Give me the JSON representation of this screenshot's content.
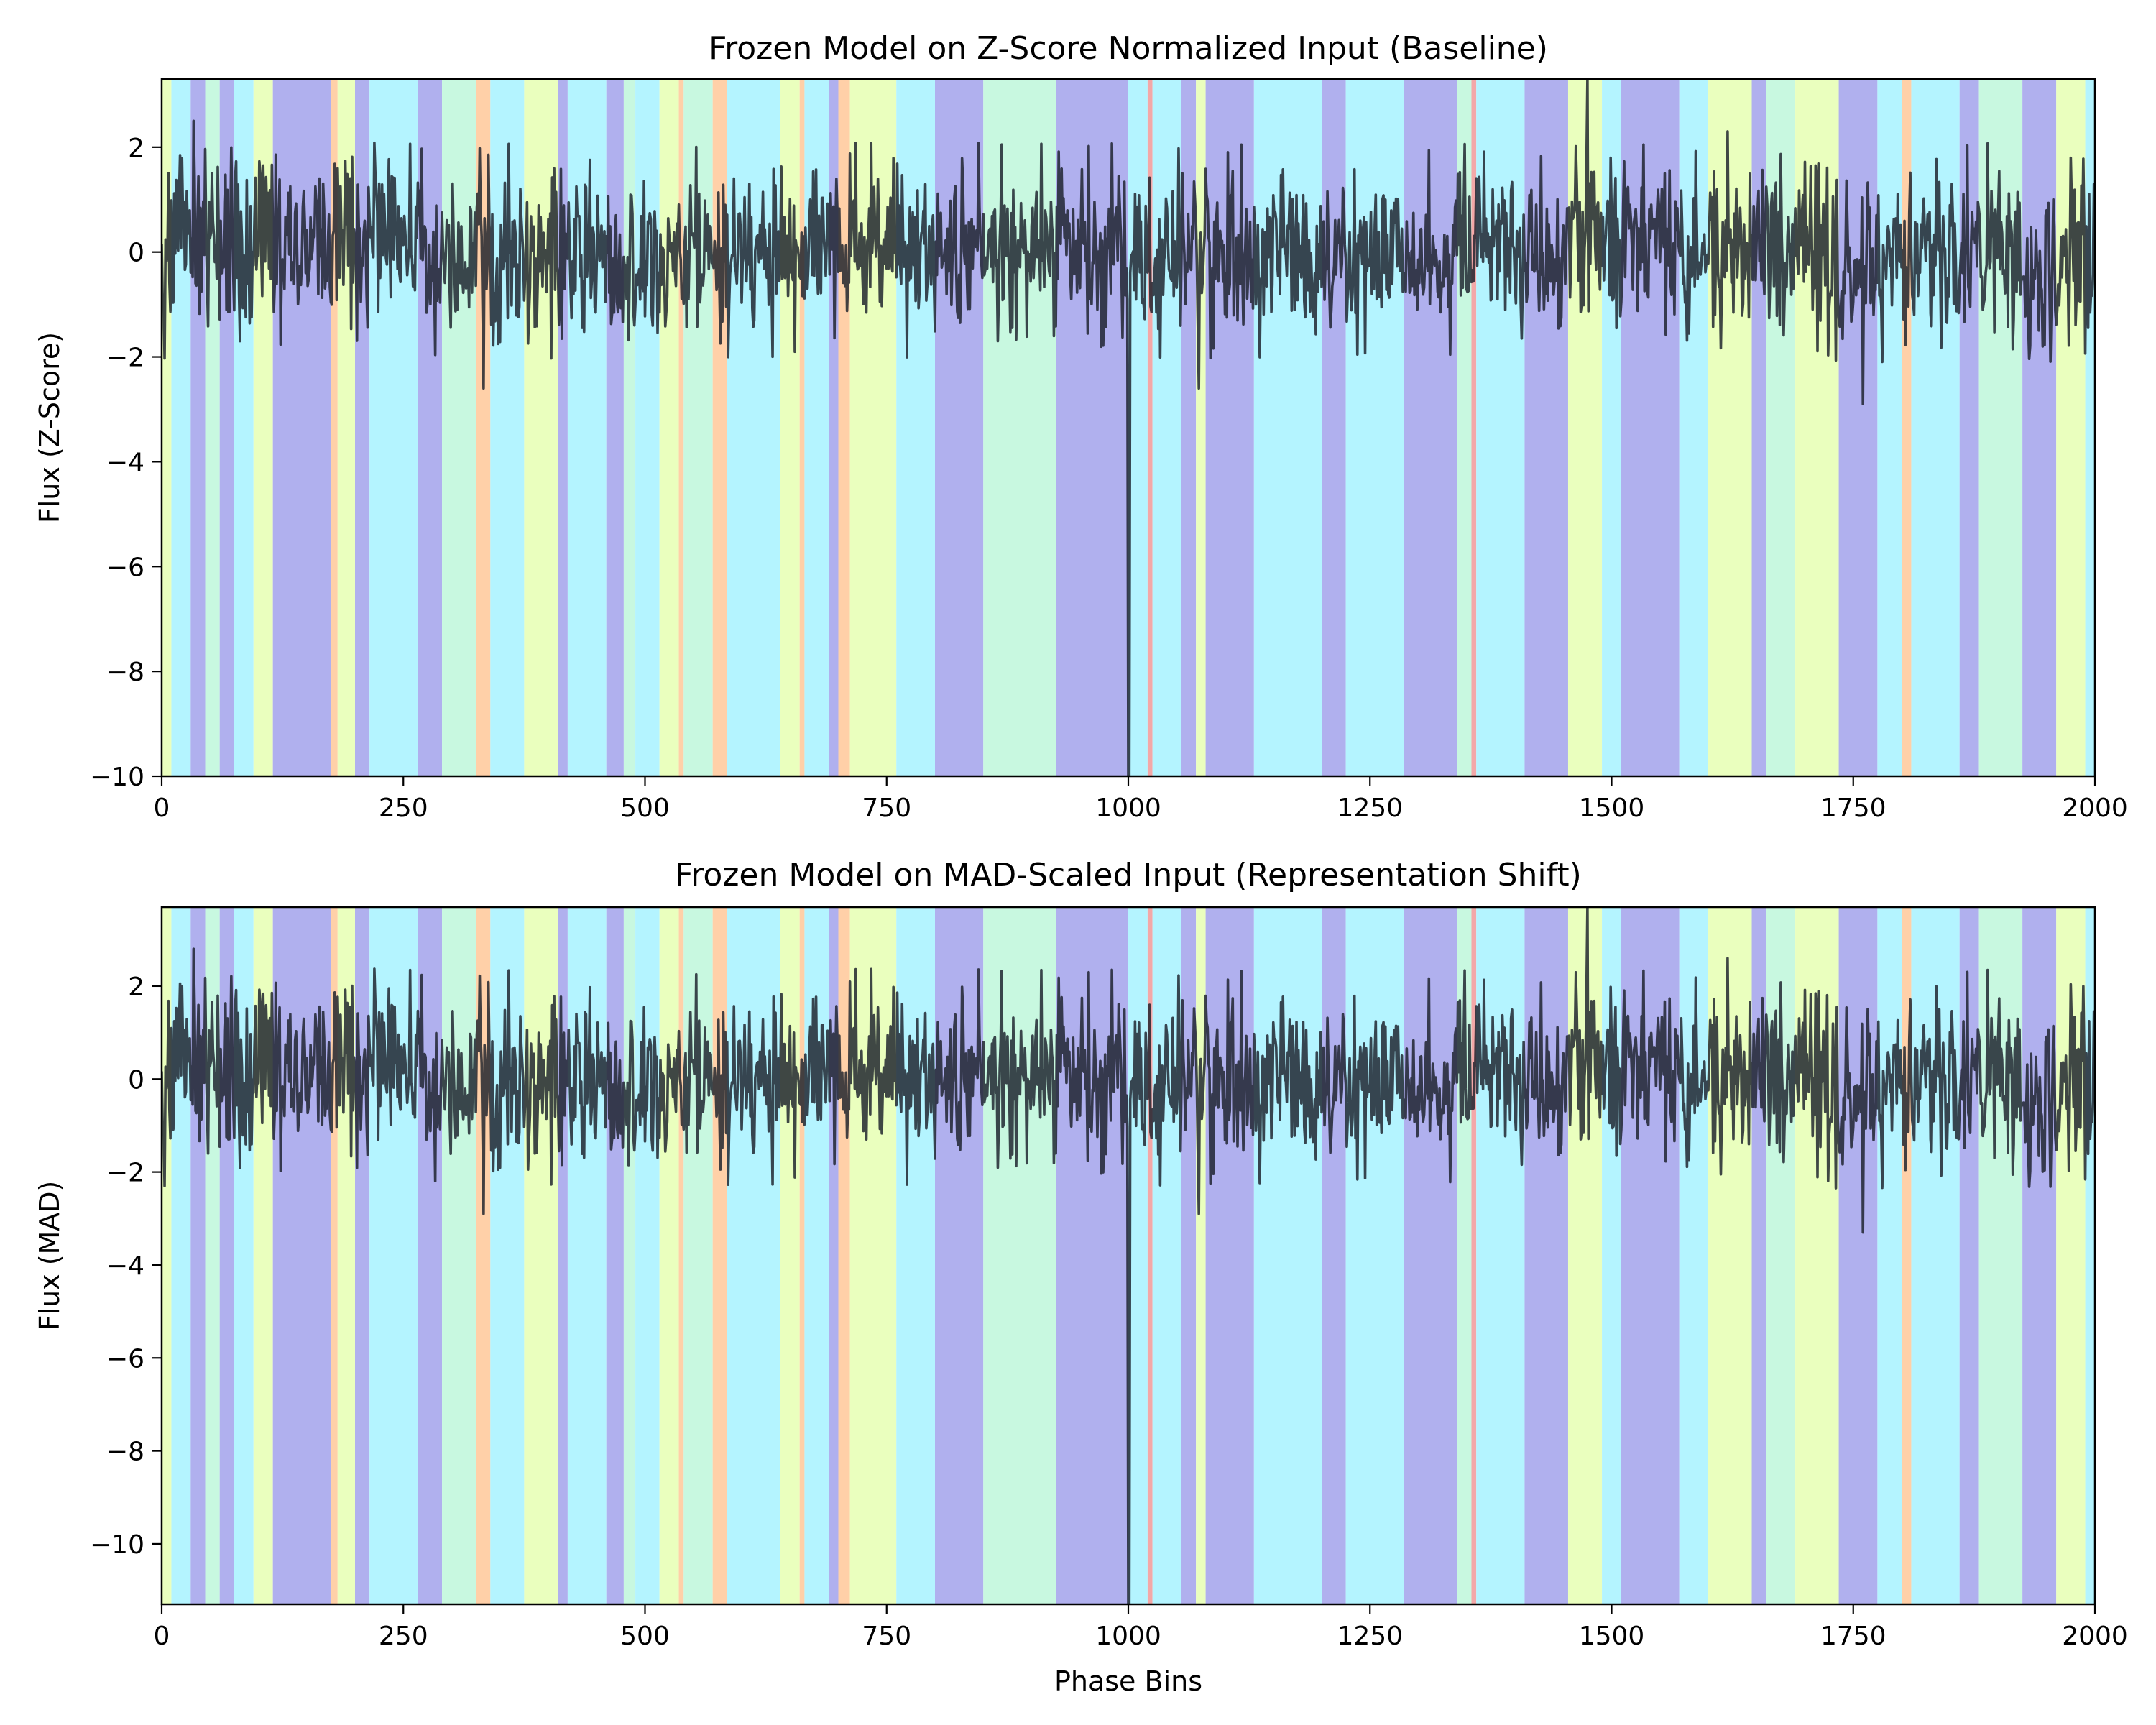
{
  "chart_data": [
    {
      "type": "line",
      "title": "Frozen Model on Z-Score Normalized Input (Baseline)",
      "xlabel": "",
      "ylabel": "Flux (Z-Score)",
      "xlim": [
        0,
        2000
      ],
      "ylim": [
        -10,
        3.3
      ],
      "xticks": [
        0,
        250,
        500,
        750,
        1000,
        1250,
        1500,
        1750,
        2000
      ],
      "xtick_labels": [
        "0",
        "250",
        "500",
        "750",
        "1000",
        "1250",
        "1500",
        "1750",
        "2000"
      ],
      "yticks": [
        2,
        0,
        -2,
        -4,
        -6,
        -8,
        -10
      ],
      "ytick_labels": [
        "2",
        "0",
        "−2",
        "−4",
        "−6",
        "−8",
        "−10"
      ],
      "grid": false,
      "line_color": "#1a1f2a",
      "noise_std": 0.85,
      "spike_scale": 1.0,
      "events": [
        {
          "x": 1000,
          "y": -10.0
        },
        {
          "x": 1001,
          "y": -10.0
        },
        {
          "x": 1475,
          "y": 3.3
        },
        {
          "x": 33,
          "y": 2.5
        },
        {
          "x": 333,
          "y": -2.6
        },
        {
          "x": 1073,
          "y": -2.6
        },
        {
          "x": 1760,
          "y": -2.9
        },
        {
          "x": 1620,
          "y": 2.3
        }
      ]
    },
    {
      "type": "line",
      "title": "Frozen Model on MAD-Scaled Input (Representation Shift)",
      "xlabel": "Phase Bins",
      "ylabel": "Flux (MAD)",
      "xlim": [
        0,
        2000
      ],
      "ylim": [
        -11.3,
        3.7
      ],
      "xticks": [
        0,
        250,
        500,
        750,
        1000,
        1250,
        1500,
        1750,
        2000
      ],
      "xtick_labels": [
        "0",
        "250",
        "500",
        "750",
        "1000",
        "1250",
        "1500",
        "1750",
        "2000"
      ],
      "yticks": [
        2,
        0,
        -2,
        -4,
        -6,
        -8,
        -10
      ],
      "ytick_labels": [
        "2",
        "0",
        "−2",
        "−4",
        "−6",
        "−8",
        "−10"
      ],
      "grid": false,
      "line_color": "#1a1f2a",
      "noise_std": 0.95,
      "spike_scale": 1.13,
      "events": [
        {
          "x": 1000,
          "y": -11.3
        },
        {
          "x": 1001,
          "y": -11.3
        },
        {
          "x": 1475,
          "y": 3.7
        },
        {
          "x": 33,
          "y": 2.8
        },
        {
          "x": 333,
          "y": -2.9
        },
        {
          "x": 1073,
          "y": -2.9
        },
        {
          "x": 1760,
          "y": -3.3
        },
        {
          "x": 1620,
          "y": 2.6
        }
      ]
    }
  ],
  "background_bands": {
    "palette": {
      "low": "#b0b0ee",
      "mid": "#b4f4ff",
      "mid2": "#c8f8e0",
      "high": "#eaffbe",
      "peak": "#ffd0a8",
      "max": "#f3a8a8"
    },
    "segments": [
      [
        0,
        10,
        "high"
      ],
      [
        10,
        30,
        "mid"
      ],
      [
        30,
        45,
        "low"
      ],
      [
        45,
        60,
        "mid2"
      ],
      [
        60,
        75,
        "low"
      ],
      [
        75,
        95,
        "mid"
      ],
      [
        95,
        115,
        "high"
      ],
      [
        115,
        175,
        "low"
      ],
      [
        175,
        182,
        "peak"
      ],
      [
        182,
        200,
        "high"
      ],
      [
        200,
        215,
        "low"
      ],
      [
        215,
        265,
        "mid"
      ],
      [
        265,
        290,
        "low"
      ],
      [
        290,
        325,
        "mid2"
      ],
      [
        325,
        340,
        "peak"
      ],
      [
        340,
        375,
        "mid"
      ],
      [
        375,
        410,
        "high"
      ],
      [
        410,
        420,
        "low"
      ],
      [
        420,
        460,
        "mid"
      ],
      [
        460,
        478,
        "low"
      ],
      [
        478,
        490,
        "mid2"
      ],
      [
        490,
        515,
        "mid"
      ],
      [
        515,
        535,
        "high"
      ],
      [
        535,
        540,
        "peak"
      ],
      [
        540,
        570,
        "mid2"
      ],
      [
        570,
        585,
        "peak"
      ],
      [
        585,
        640,
        "mid"
      ],
      [
        640,
        660,
        "high"
      ],
      [
        660,
        665,
        "peak"
      ],
      [
        665,
        690,
        "mid"
      ],
      [
        690,
        700,
        "low"
      ],
      [
        700,
        712,
        "peak"
      ],
      [
        712,
        760,
        "high"
      ],
      [
        760,
        800,
        "mid"
      ],
      [
        800,
        850,
        "low"
      ],
      [
        850,
        925,
        "mid2"
      ],
      [
        925,
        1000,
        "low"
      ],
      [
        1000,
        1020,
        "mid"
      ],
      [
        1020,
        1025,
        "max"
      ],
      [
        1025,
        1055,
        "mid"
      ],
      [
        1055,
        1070,
        "low"
      ],
      [
        1070,
        1080,
        "high"
      ],
      [
        1080,
        1130,
        "low"
      ],
      [
        1130,
        1200,
        "mid"
      ],
      [
        1200,
        1225,
        "low"
      ],
      [
        1225,
        1285,
        "mid"
      ],
      [
        1285,
        1340,
        "low"
      ],
      [
        1340,
        1355,
        "mid2"
      ],
      [
        1355,
        1360,
        "max"
      ],
      [
        1360,
        1410,
        "mid"
      ],
      [
        1410,
        1455,
        "low"
      ],
      [
        1455,
        1490,
        "high"
      ],
      [
        1490,
        1510,
        "mid"
      ],
      [
        1510,
        1570,
        "low"
      ],
      [
        1570,
        1600,
        "mid"
      ],
      [
        1600,
        1645,
        "high"
      ],
      [
        1645,
        1660,
        "low"
      ],
      [
        1660,
        1690,
        "mid2"
      ],
      [
        1690,
        1735,
        "high"
      ],
      [
        1735,
        1775,
        "low"
      ],
      [
        1775,
        1800,
        "mid"
      ],
      [
        1800,
        1810,
        "peak"
      ],
      [
        1810,
        1860,
        "mid"
      ],
      [
        1860,
        1880,
        "low"
      ],
      [
        1880,
        1925,
        "mid2"
      ],
      [
        1925,
        1960,
        "low"
      ],
      [
        1960,
        1990,
        "high"
      ],
      [
        1990,
        2000,
        "mid"
      ]
    ]
  }
}
